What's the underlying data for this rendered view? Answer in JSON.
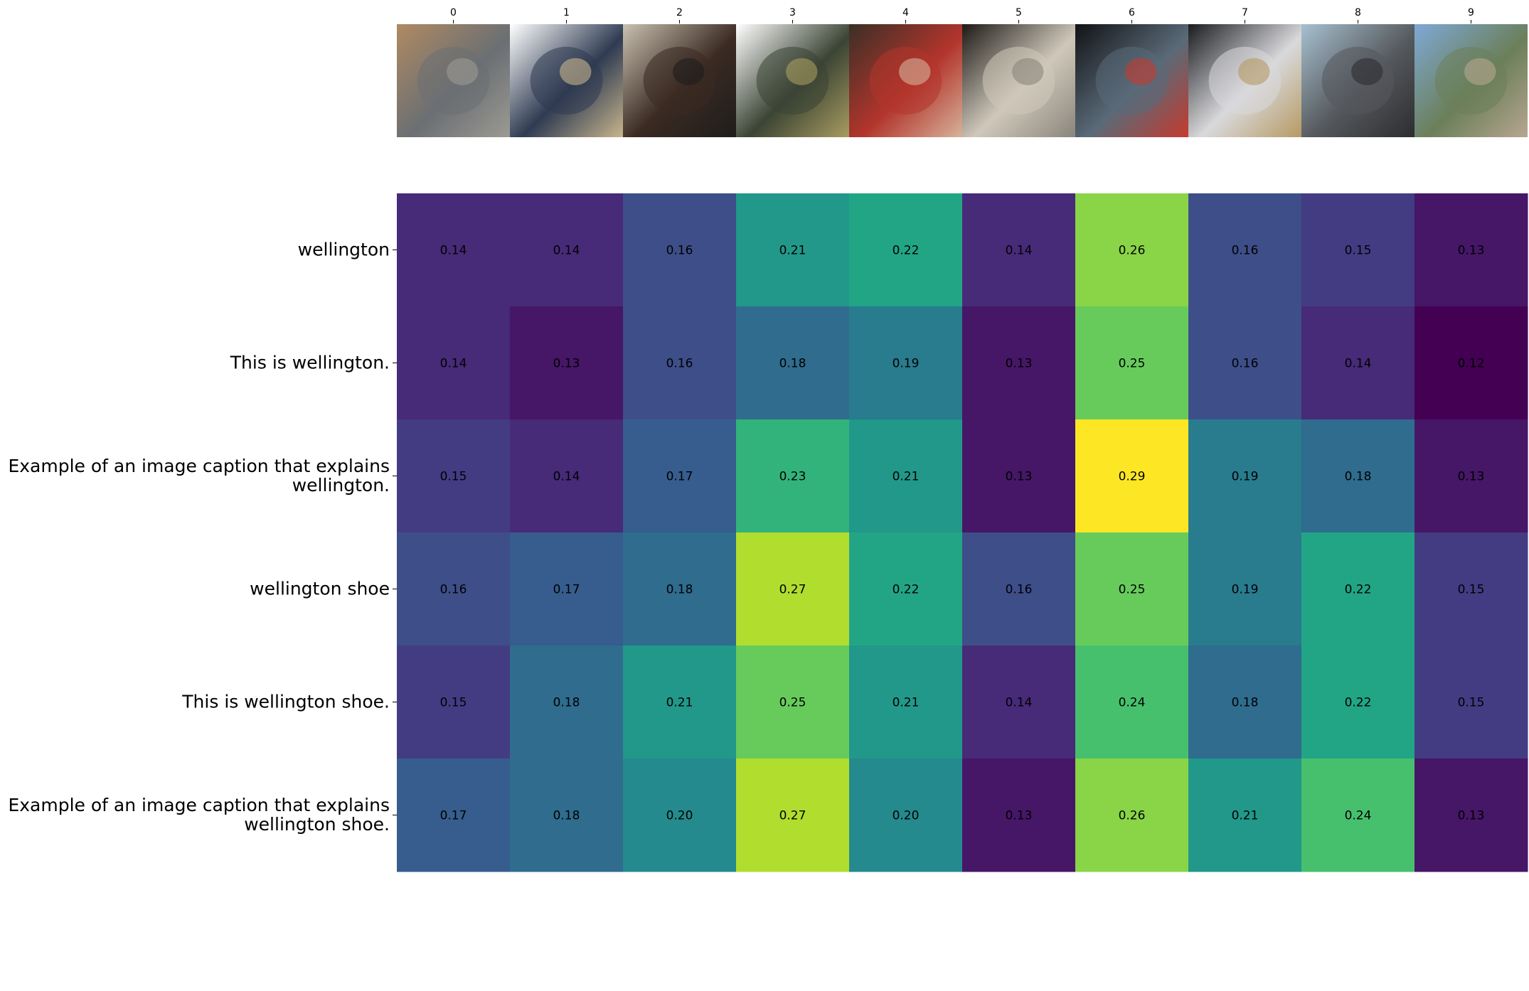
{
  "chart_data": {
    "type": "heatmap",
    "x_categories": [
      "0",
      "1",
      "2",
      "3",
      "4",
      "5",
      "6",
      "7",
      "8",
      "9"
    ],
    "y_categories": [
      [
        "wellington"
      ],
      [
        "This is wellington."
      ],
      [
        "Example of an image caption that explains",
        "wellington."
      ],
      [
        "wellington shoe"
      ],
      [
        "This is wellington shoe."
      ],
      [
        "Example of an image caption that explains",
        "wellington shoe."
      ]
    ],
    "values": [
      [
        0.14,
        0.14,
        0.16,
        0.21,
        0.22,
        0.14,
        0.26,
        0.16,
        0.15,
        0.13
      ],
      [
        0.14,
        0.13,
        0.16,
        0.18,
        0.19,
        0.13,
        0.25,
        0.16,
        0.14,
        0.12
      ],
      [
        0.15,
        0.14,
        0.17,
        0.23,
        0.21,
        0.13,
        0.29,
        0.19,
        0.18,
        0.13
      ],
      [
        0.16,
        0.17,
        0.18,
        0.27,
        0.22,
        0.16,
        0.25,
        0.19,
        0.22,
        0.15
      ],
      [
        0.15,
        0.18,
        0.21,
        0.25,
        0.21,
        0.14,
        0.24,
        0.18,
        0.22,
        0.15
      ],
      [
        0.17,
        0.18,
        0.2,
        0.27,
        0.2,
        0.13,
        0.26,
        0.21,
        0.24,
        0.13
      ]
    ],
    "colormap": "viridis",
    "color_range": [
      0.12,
      0.29
    ],
    "value_format": "2 decimals",
    "images": [
      {
        "icon": "cowhide-rug",
        "colors": [
          "#b08a62",
          "#6b6f73",
          "#9c9a93"
        ]
      },
      {
        "icon": "watch-strap",
        "colors": [
          "#ffffff",
          "#2f3b52",
          "#c8b58d"
        ]
      },
      {
        "icon": "horse-saddle",
        "colors": [
          "#c9c1b1",
          "#3a2a22",
          "#1f1d1c"
        ]
      },
      {
        "icon": "rubber-boots",
        "colors": [
          "#ffffff",
          "#3b4434",
          "#a89c61"
        ]
      },
      {
        "icon": "wellington-portrait",
        "colors": [
          "#3a2f26",
          "#b3352c",
          "#d6b39b"
        ]
      },
      {
        "icon": "lace-doily",
        "colors": [
          "#1d1a17",
          "#cfc8ba",
          "#8a857c"
        ]
      },
      {
        "icon": "wellington-station",
        "colors": [
          "#111316",
          "#5a6a78",
          "#c53a2e"
        ]
      },
      {
        "icon": "heelys-shoe",
        "colors": [
          "#1a1c1f",
          "#d9d9dc",
          "#b69a63"
        ]
      },
      {
        "icon": "sandals",
        "colors": [
          "#a7c0d0",
          "#55585c",
          "#2c2d30"
        ]
      },
      {
        "icon": "mountain-town-street",
        "colors": [
          "#7fa9d6",
          "#6b7f5a",
          "#b7a690"
        ]
      }
    ]
  }
}
